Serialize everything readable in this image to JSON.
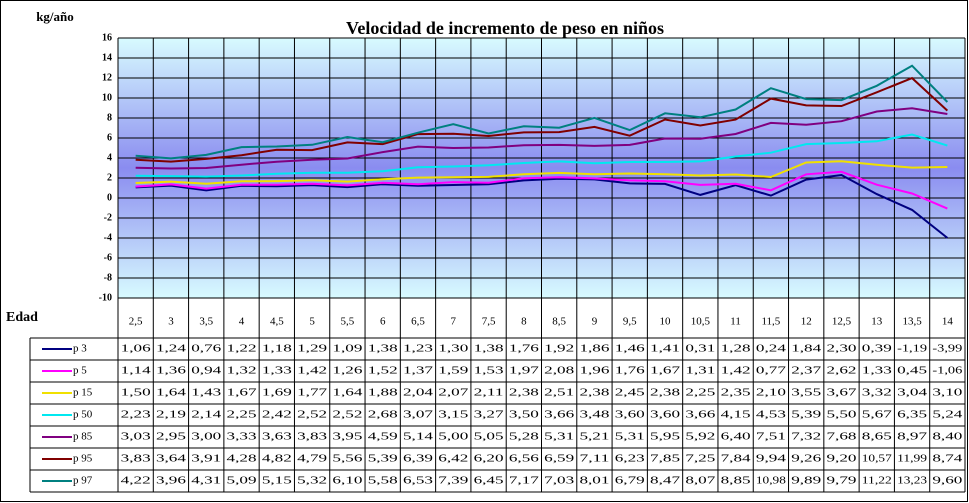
{
  "chart_data": {
    "type": "line",
    "title": "Velocidad de incremento de peso en niños",
    "y_label": "kg/año",
    "x_label": "Edad",
    "categories": [
      "2,5",
      "3",
      "3,5",
      "4",
      "4,5",
      "5",
      "5,5",
      "6",
      "6,5",
      "7",
      "7,5",
      "8",
      "8,5",
      "9",
      "9,5",
      "10",
      "10,5",
      "11",
      "11,5",
      "12",
      "12,5",
      "13",
      "13,5",
      "14"
    ],
    "ylim": [
      -10,
      16
    ],
    "yticks": [
      16,
      14,
      12,
      10,
      8,
      6,
      4,
      2,
      0,
      -2,
      -4,
      -6,
      -8,
      -10
    ],
    "grid": true,
    "series": [
      {
        "name": "p 3",
        "color": "#000080",
        "values": [
          1.06,
          1.24,
          0.76,
          1.22,
          1.18,
          1.29,
          1.09,
          1.38,
          1.23,
          1.3,
          1.38,
          1.76,
          1.92,
          1.86,
          1.46,
          1.41,
          0.31,
          1.28,
          0.24,
          1.84,
          2.3,
          0.39,
          -1.19,
          -3.99
        ],
        "value_labels": [
          "1,06",
          "1,24",
          "0,76",
          "1,22",
          "1,18",
          "1,29",
          "1,09",
          "1,38",
          "1,23",
          "1,30",
          "1,38",
          "1,76",
          "1,92",
          "1,86",
          "1,46",
          "1,41",
          "0,31",
          "1,28",
          "0,24",
          "1,84",
          "2,30",
          "0,39",
          "-1,19",
          "-3,99"
        ]
      },
      {
        "name": "p 5",
        "color": "#ff00ff",
        "values": [
          1.14,
          1.36,
          0.94,
          1.32,
          1.33,
          1.42,
          1.26,
          1.52,
          1.37,
          1.59,
          1.53,
          1.97,
          2.08,
          1.96,
          1.76,
          1.67,
          1.31,
          1.42,
          0.77,
          2.37,
          2.62,
          1.33,
          0.45,
          -1.06
        ],
        "value_labels": [
          "1,14",
          "1,36",
          "0,94",
          "1,32",
          "1,33",
          "1,42",
          "1,26",
          "1,52",
          "1,37",
          "1,59",
          "1,53",
          "1,97",
          "2,08",
          "1,96",
          "1,76",
          "1,67",
          "1,31",
          "1,42",
          "0,77",
          "2,37",
          "2,62",
          "1,33",
          "0,45",
          "-1,06"
        ]
      },
      {
        "name": "p 15",
        "color": "#f0e000",
        "values": [
          1.5,
          1.64,
          1.43,
          1.67,
          1.69,
          1.77,
          1.64,
          1.88,
          2.04,
          2.07,
          2.11,
          2.38,
          2.51,
          2.38,
          2.45,
          2.38,
          2.25,
          2.35,
          2.1,
          3.55,
          3.67,
          3.32,
          3.04,
          3.1
        ],
        "value_labels": [
          "1,50",
          "1,64",
          "1,43",
          "1,67",
          "1,69",
          "1,77",
          "1,64",
          "1,88",
          "2,04",
          "2,07",
          "2,11",
          "2,38",
          "2,51",
          "2,38",
          "2,45",
          "2,38",
          "2,25",
          "2,35",
          "2,10",
          "3,55",
          "3,67",
          "3,32",
          "3,04",
          "3,10"
        ]
      },
      {
        "name": "p 50",
        "color": "#00e8f0",
        "values": [
          2.23,
          2.19,
          2.14,
          2.25,
          2.42,
          2.52,
          2.52,
          2.68,
          3.07,
          3.15,
          3.27,
          3.5,
          3.66,
          3.48,
          3.6,
          3.6,
          3.66,
          4.15,
          4.53,
          5.39,
          5.5,
          5.67,
          6.35,
          5.24
        ],
        "value_labels": [
          "2,23",
          "2,19",
          "2,14",
          "2,25",
          "2,42",
          "2,52",
          "2,52",
          "2,68",
          "3,07",
          "3,15",
          "3,27",
          "3,50",
          "3,66",
          "3,48",
          "3,60",
          "3,60",
          "3,66",
          "4,15",
          "4,53",
          "5,39",
          "5,50",
          "5,67",
          "6,35",
          "5,24"
        ]
      },
      {
        "name": "p 85",
        "color": "#800080",
        "values": [
          3.03,
          2.95,
          3.0,
          3.33,
          3.63,
          3.83,
          3.95,
          4.59,
          5.14,
          5.0,
          5.05,
          5.28,
          5.31,
          5.21,
          5.31,
          5.95,
          5.92,
          6.4,
          7.51,
          7.32,
          7.68,
          8.65,
          8.97,
          8.4
        ],
        "value_labels": [
          "3,03",
          "2,95",
          "3,00",
          "3,33",
          "3,63",
          "3,83",
          "3,95",
          "4,59",
          "5,14",
          "5,00",
          "5,05",
          "5,28",
          "5,31",
          "5,21",
          "5,31",
          "5,95",
          "5,92",
          "6,40",
          "7,51",
          "7,32",
          "7,68",
          "8,65",
          "8,97",
          "8,40"
        ]
      },
      {
        "name": "p 95",
        "color": "#800000",
        "values": [
          3.83,
          3.64,
          3.91,
          4.28,
          4.82,
          4.79,
          5.56,
          5.39,
          6.39,
          6.42,
          6.2,
          6.56,
          6.59,
          7.11,
          6.23,
          7.85,
          7.25,
          7.84,
          9.94,
          9.26,
          9.2,
          10.57,
          11.99,
          8.74
        ],
        "value_labels": [
          "3,83",
          "3,64",
          "3,91",
          "4,28",
          "4,82",
          "4,79",
          "5,56",
          "5,39",
          "6,39",
          "6,42",
          "6,20",
          "6,56",
          "6,59",
          "7,11",
          "6,23",
          "7,85",
          "7,25",
          "7,84",
          "9,94",
          "9,26",
          "9,20",
          "10,57",
          "11,99",
          "8,74"
        ]
      },
      {
        "name": "p 97",
        "color": "#008080",
        "values": [
          4.22,
          3.96,
          4.31,
          5.09,
          5.15,
          5.32,
          6.1,
          5.58,
          6.53,
          7.39,
          6.45,
          7.17,
          7.03,
          8.01,
          6.79,
          8.47,
          8.07,
          8.85,
          10.98,
          9.89,
          9.79,
          11.22,
          13.23,
          9.6
        ],
        "value_labels": [
          "4,22",
          "3,96",
          "4,31",
          "5,09",
          "5,15",
          "5,32",
          "6,10",
          "5,58",
          "6,53",
          "7,39",
          "6,45",
          "7,17",
          "7,03",
          "8,01",
          "6,79",
          "8,47",
          "8,07",
          "8,85",
          "10,98",
          "9,89",
          "9,79",
          "11,22",
          "13,23",
          "9,60"
        ]
      }
    ]
  }
}
